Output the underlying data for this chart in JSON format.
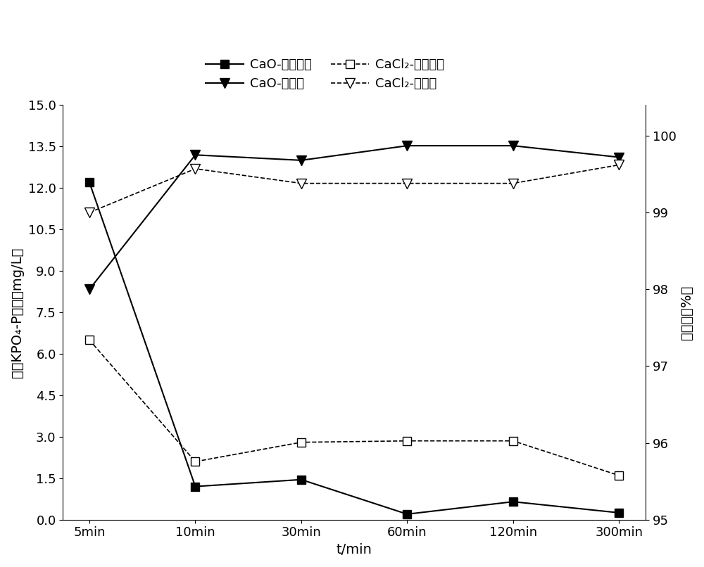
{
  "x_labels": [
    "5min",
    "10min",
    "30min",
    "60min",
    "120min",
    "300min"
  ],
  "x_positions": [
    0,
    1,
    2,
    3,
    4,
    5
  ],
  "cao_concentration": [
    12.2,
    1.2,
    1.45,
    0.2,
    0.65,
    0.25
  ],
  "cacl2_concentration": [
    6.5,
    2.1,
    2.8,
    2.85,
    2.85,
    1.6
  ],
  "cao_removal": [
    98.0,
    99.75,
    99.68,
    99.87,
    99.87,
    99.72
  ],
  "cacl2_removal": [
    99.0,
    99.57,
    99.38,
    99.38,
    99.38,
    99.62
  ],
  "left_ylim": [
    0,
    15.0
  ],
  "left_yticks": [
    0.0,
    1.5,
    3.0,
    4.5,
    6.0,
    7.5,
    9.0,
    10.5,
    12.0,
    13.5,
    15.0
  ],
  "right_ylim": [
    95,
    100.4
  ],
  "right_yticks": [
    95,
    96,
    97,
    98,
    99,
    100
  ],
  "xlabel": "t/min",
  "ylabel_left": "出水KPO₄-P浓度（mg/L）",
  "ylabel_right": "除磷率（%）",
  "legend_label_cao_conc": "CaO-出水浓度",
  "legend_label_cao_removal": "CaO-除磷率",
  "legend_label_cacl2_conc": "CaCl₂-出水浓度",
  "legend_label_cacl2_removal": "CaCl₂-除磷率",
  "line_color": "#000000",
  "background_color": "#ffffff",
  "label_fontsize": 14,
  "tick_fontsize": 13,
  "legend_fontsize": 13
}
